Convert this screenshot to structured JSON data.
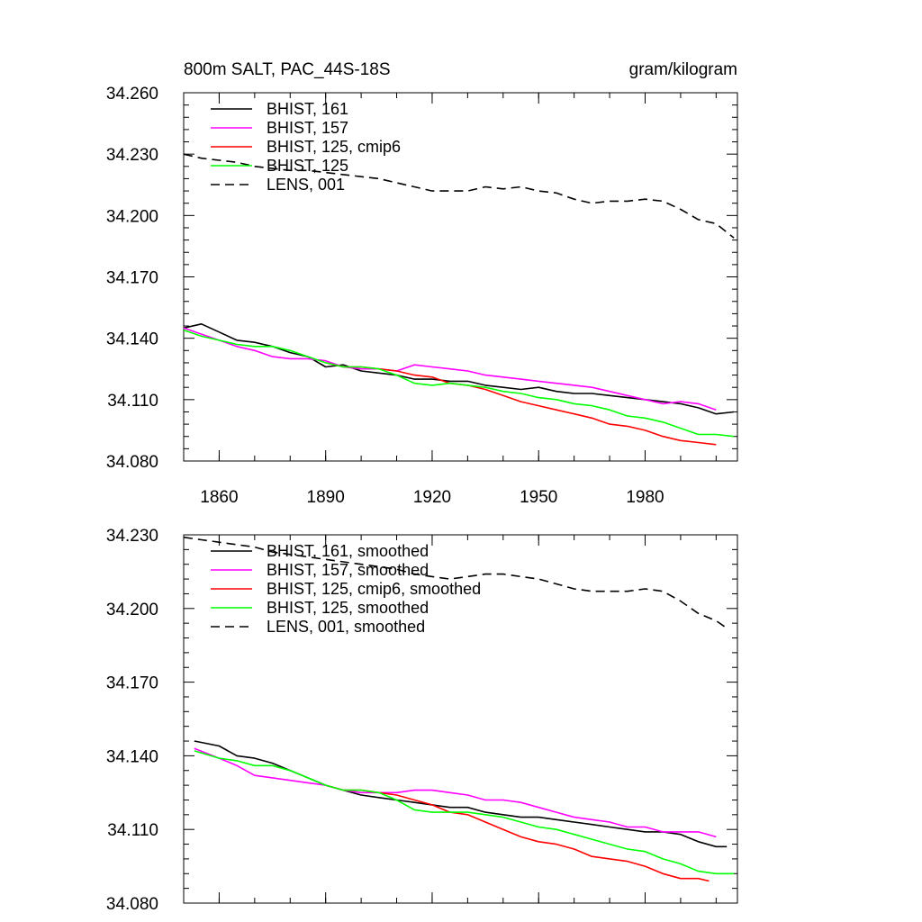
{
  "chart_data": [
    {
      "type": "line",
      "title": "800m SALT, PAC_44S-18S",
      "units": "gram/kilogram",
      "xlim": [
        1850,
        2006
      ],
      "ylim": [
        34.08,
        34.26
      ],
      "x_ticks": [
        1860,
        1890,
        1920,
        1950,
        1980
      ],
      "x_tick_labels": [
        "1860",
        "1890",
        "1920",
        "1950",
        "1980"
      ],
      "y_ticks": [
        34.08,
        34.11,
        34.14,
        34.17,
        34.2,
        34.23,
        34.26
      ],
      "y_tick_labels": [
        "34.080",
        "34.110",
        "34.140",
        "34.170",
        "34.200",
        "34.230",
        "34.260"
      ],
      "legend_position": "top-left",
      "series": [
        {
          "name": "BHIST, 161",
          "color": "#000000",
          "dash": "solid",
          "x": [
            1850,
            1855,
            1860,
            1865,
            1870,
            1875,
            1880,
            1885,
            1890,
            1895,
            1900,
            1905,
            1910,
            1915,
            1920,
            1925,
            1930,
            1935,
            1940,
            1945,
            1950,
            1955,
            1960,
            1965,
            1970,
            1975,
            1980,
            1985,
            1990,
            1995,
            2000,
            2005
          ],
          "y": [
            34.145,
            34.147,
            34.143,
            34.139,
            34.138,
            34.136,
            34.133,
            34.131,
            34.126,
            34.127,
            34.124,
            34.123,
            34.122,
            34.12,
            34.12,
            34.119,
            34.119,
            34.117,
            34.116,
            34.115,
            34.116,
            34.114,
            34.113,
            34.113,
            34.112,
            34.111,
            34.11,
            34.109,
            34.108,
            34.106,
            34.103,
            34.104
          ]
        },
        {
          "name": "BHIST, 157",
          "color": "#ff00ff",
          "dash": "solid",
          "x": [
            1850,
            1855,
            1860,
            1865,
            1870,
            1875,
            1880,
            1885,
            1890,
            1895,
            1900,
            1905,
            1910,
            1915,
            1920,
            1925,
            1930,
            1935,
            1940,
            1945,
            1950,
            1955,
            1960,
            1965,
            1970,
            1975,
            1980,
            1985,
            1990,
            1995,
            2000
          ],
          "y": [
            34.145,
            34.142,
            34.139,
            34.136,
            34.134,
            34.131,
            34.13,
            34.13,
            34.129,
            34.126,
            34.125,
            34.125,
            34.124,
            34.127,
            34.126,
            34.125,
            34.124,
            34.122,
            34.121,
            34.12,
            34.119,
            34.118,
            34.117,
            34.116,
            34.114,
            34.112,
            34.11,
            34.108,
            34.109,
            34.108,
            34.105
          ]
        },
        {
          "name": "BHIST, 125, cmip6",
          "color": "#ff0000",
          "dash": "solid",
          "x": [
            1890,
            1895,
            1900,
            1905,
            1910,
            1915,
            1920,
            1925,
            1930,
            1935,
            1940,
            1945,
            1950,
            1955,
            1960,
            1965,
            1970,
            1975,
            1980,
            1985,
            1990,
            1995,
            2000
          ],
          "y": [
            34.128,
            34.126,
            34.126,
            34.125,
            34.124,
            34.122,
            34.121,
            34.118,
            34.117,
            34.115,
            34.112,
            34.109,
            34.107,
            34.105,
            34.103,
            34.101,
            34.098,
            34.097,
            34.095,
            34.092,
            34.09,
            34.089,
            34.088
          ]
        },
        {
          "name": "BHIST, 125",
          "color": "#00ff00",
          "dash": "solid",
          "x": [
            1850,
            1855,
            1860,
            1865,
            1870,
            1875,
            1880,
            1885,
            1890,
            1895,
            1900,
            1905,
            1910,
            1915,
            1920,
            1925,
            1930,
            1935,
            1940,
            1945,
            1950,
            1955,
            1960,
            1965,
            1970,
            1975,
            1980,
            1985,
            1990,
            1995,
            2000,
            2005
          ],
          "y": [
            34.144,
            34.141,
            34.139,
            34.137,
            34.136,
            34.136,
            34.134,
            34.131,
            34.128,
            34.126,
            34.126,
            34.125,
            34.122,
            34.118,
            34.117,
            34.118,
            34.117,
            34.116,
            34.114,
            34.113,
            34.111,
            34.11,
            34.108,
            34.107,
            34.105,
            34.102,
            34.101,
            34.099,
            34.096,
            34.093,
            34.093,
            34.092
          ]
        },
        {
          "name": "LENS, 001",
          "color": "#000000",
          "dash": "dashed",
          "x": [
            1850,
            1855,
            1860,
            1865,
            1870,
            1875,
            1880,
            1885,
            1890,
            1895,
            1900,
            1905,
            1910,
            1915,
            1920,
            1925,
            1930,
            1935,
            1940,
            1945,
            1950,
            1955,
            1960,
            1965,
            1970,
            1975,
            1980,
            1985,
            1990,
            1995,
            2000,
            2005
          ],
          "y": [
            34.23,
            34.228,
            34.227,
            34.226,
            34.224,
            34.223,
            34.222,
            34.222,
            34.221,
            34.22,
            34.219,
            34.218,
            34.216,
            34.214,
            34.212,
            34.212,
            34.212,
            34.214,
            34.213,
            34.214,
            34.212,
            34.211,
            34.208,
            34.206,
            34.207,
            34.207,
            34.208,
            34.207,
            34.203,
            34.198,
            34.196,
            34.189
          ]
        }
      ]
    },
    {
      "type": "line",
      "title": "",
      "units": "",
      "xlim": [
        1850,
        2006
      ],
      "ylim": [
        34.08,
        34.23
      ],
      "x_ticks": [
        1860,
        1890,
        1920,
        1950,
        1980
      ],
      "x_tick_labels": [],
      "y_ticks": [
        34.08,
        34.11,
        34.14,
        34.17,
        34.2,
        34.23
      ],
      "y_tick_labels": [
        "34.080",
        "34.110",
        "34.140",
        "34.170",
        "34.200",
        "34.230"
      ],
      "legend_position": "top-left",
      "series": [
        {
          "name": "BHIST, 161, smoothed",
          "color": "#000000",
          "dash": "solid",
          "x": [
            1853,
            1860,
            1865,
            1870,
            1875,
            1880,
            1885,
            1890,
            1895,
            1900,
            1905,
            1910,
            1915,
            1920,
            1925,
            1930,
            1935,
            1940,
            1945,
            1950,
            1955,
            1960,
            1965,
            1970,
            1975,
            1980,
            1985,
            1990,
            1995,
            2000,
            2003
          ],
          "y": [
            34.146,
            34.144,
            34.14,
            34.139,
            34.137,
            34.134,
            34.131,
            34.128,
            34.126,
            34.124,
            34.123,
            34.122,
            34.121,
            34.12,
            34.119,
            34.119,
            34.117,
            34.116,
            34.115,
            34.115,
            34.114,
            34.113,
            34.112,
            34.111,
            34.11,
            34.109,
            34.109,
            34.108,
            34.105,
            34.103,
            34.103
          ]
        },
        {
          "name": "BHIST, 157, smoothed",
          "color": "#ff00ff",
          "dash": "solid",
          "x": [
            1853,
            1860,
            1865,
            1870,
            1875,
            1880,
            1885,
            1890,
            1895,
            1900,
            1905,
            1910,
            1915,
            1920,
            1925,
            1930,
            1935,
            1940,
            1945,
            1950,
            1955,
            1960,
            1965,
            1970,
            1975,
            1980,
            1985,
            1990,
            1995,
            2000
          ],
          "y": [
            34.143,
            34.139,
            34.136,
            34.132,
            34.131,
            34.13,
            34.129,
            34.128,
            34.126,
            34.125,
            34.125,
            34.125,
            34.126,
            34.126,
            34.125,
            34.124,
            34.122,
            34.122,
            34.121,
            34.119,
            34.117,
            34.115,
            34.114,
            34.113,
            34.111,
            34.111,
            34.109,
            34.109,
            34.109,
            34.107
          ]
        },
        {
          "name": "BHIST, 125, cmip6, smoothed",
          "color": "#ff0000",
          "dash": "solid",
          "x": [
            1890,
            1895,
            1900,
            1905,
            1910,
            1915,
            1920,
            1925,
            1930,
            1935,
            1940,
            1945,
            1950,
            1955,
            1960,
            1965,
            1970,
            1975,
            1980,
            1985,
            1990,
            1995,
            1998
          ],
          "y": [
            34.128,
            34.126,
            34.126,
            34.125,
            34.124,
            34.122,
            34.12,
            34.117,
            34.116,
            34.113,
            34.11,
            34.107,
            34.105,
            34.104,
            34.102,
            34.099,
            34.098,
            34.097,
            34.095,
            34.092,
            34.09,
            34.09,
            34.089
          ]
        },
        {
          "name": "BHIST, 125, smoothed",
          "color": "#00ff00",
          "dash": "solid",
          "x": [
            1853,
            1860,
            1865,
            1870,
            1875,
            1880,
            1885,
            1890,
            1895,
            1900,
            1905,
            1910,
            1915,
            1920,
            1925,
            1930,
            1935,
            1940,
            1945,
            1950,
            1955,
            1960,
            1965,
            1970,
            1975,
            1980,
            1985,
            1990,
            1995,
            2000,
            2005
          ],
          "y": [
            34.142,
            34.139,
            34.138,
            34.136,
            34.136,
            34.134,
            34.131,
            34.128,
            34.126,
            34.126,
            34.125,
            34.122,
            34.118,
            34.117,
            34.117,
            34.117,
            34.116,
            34.115,
            34.113,
            34.111,
            34.11,
            34.108,
            34.106,
            34.104,
            34.102,
            34.101,
            34.098,
            34.096,
            34.093,
            34.092,
            34.092
          ]
        },
        {
          "name": "LENS, 001, smoothed",
          "color": "#000000",
          "dash": "dashed",
          "x": [
            1850,
            1855,
            1860,
            1865,
            1870,
            1875,
            1880,
            1885,
            1890,
            1895,
            1900,
            1905,
            1910,
            1915,
            1920,
            1925,
            1930,
            1935,
            1940,
            1945,
            1950,
            1955,
            1960,
            1965,
            1970,
            1975,
            1980,
            1985,
            1990,
            1995,
            2000,
            2003
          ],
          "y": [
            34.229,
            34.228,
            34.227,
            34.226,
            34.225,
            34.223,
            34.222,
            34.221,
            34.22,
            34.219,
            34.218,
            34.217,
            34.216,
            34.214,
            34.213,
            34.212,
            34.213,
            34.214,
            34.214,
            34.213,
            34.212,
            34.21,
            34.208,
            34.207,
            34.207,
            34.207,
            34.208,
            34.207,
            34.203,
            34.198,
            34.195,
            34.192
          ]
        }
      ]
    }
  ]
}
